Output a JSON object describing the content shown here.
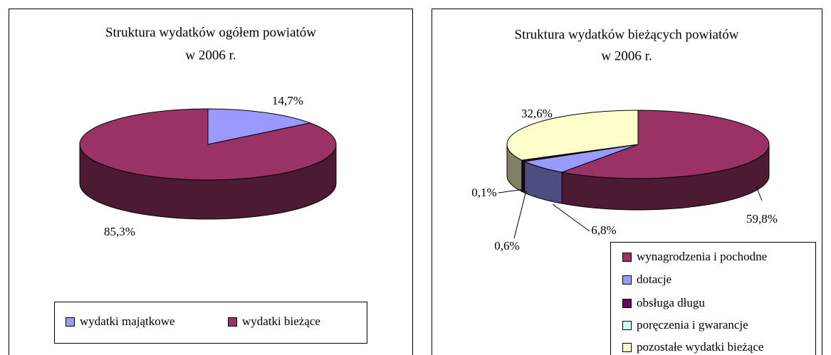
{
  "chart_data": [
    {
      "type": "pie3d",
      "title": [
        "Struktura wydatków ogółem powiatów",
        "w 2006 r."
      ],
      "categories": [
        "wydatki majątkowe",
        "wydatki bieżące"
      ],
      "values": [
        14.7,
        85.3
      ],
      "value_labels": [
        "14,7%",
        "85,3%"
      ],
      "colors": [
        "#9999ff",
        "#993366"
      ],
      "legend": "bottom"
    },
    {
      "type": "pie3d",
      "title": [
        "Struktura wydatków bieżących powiatów",
        "w 2006 r."
      ],
      "categories": [
        "wynagrodzenia i pochodne",
        "dotacje",
        "obsługa długu",
        "poręczenia i gwarancje",
        "pozostałe wydatki bieżące"
      ],
      "values": [
        59.8,
        6.8,
        0.6,
        0.1,
        32.6
      ],
      "value_labels": [
        "59,8%",
        "6,8%",
        "0,6%",
        "0,1%",
        "32,6%"
      ],
      "colors": [
        "#993366",
        "#9999ff",
        "#660066",
        "#ccffff",
        "#ffffcc"
      ],
      "legend": "right"
    }
  ]
}
